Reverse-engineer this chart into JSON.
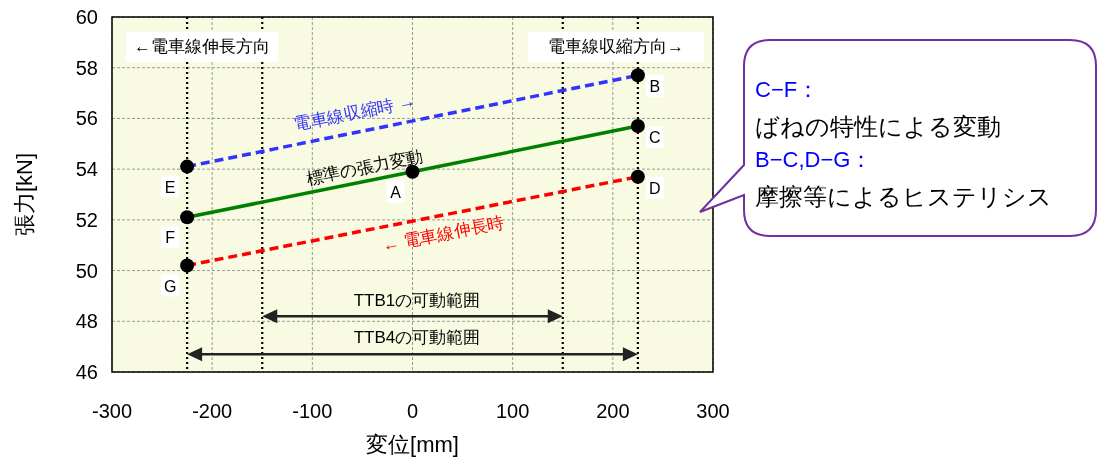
{
  "chart_data": {
    "type": "line",
    "xlabel": "変位[mm]",
    "ylabel": "張力[kN]",
    "xlim": [
      -300,
      300
    ],
    "xticks": [
      -300,
      -200,
      -100,
      0,
      100,
      200,
      300
    ],
    "ylim": [
      46,
      60
    ],
    "yticks": [
      46,
      48,
      50,
      52,
      54,
      56,
      58,
      60
    ],
    "grid": true,
    "series": [
      {
        "name": "電車線収縮時 →",
        "color": "#3333ff",
        "line_style": "dashed",
        "x": [
          -225,
          225
        ],
        "values": [
          54.1,
          57.7
        ]
      },
      {
        "name": "標準の張力変動",
        "color": "#008000",
        "line_style": "solid",
        "x": [
          -225,
          0,
          225
        ],
        "values": [
          52.1,
          53.9,
          55.7
        ]
      },
      {
        "name": "← 電車線伸長時",
        "color": "#ff0000",
        "line_style": "dashed",
        "x": [
          -225,
          225
        ],
        "values": [
          50.2,
          53.7
        ]
      },
      {
        "type": "scatter",
        "color": "#000000",
        "marker": "circle",
        "x": [
          0,
          225,
          225,
          225,
          -225,
          -225,
          -225
        ],
        "values": [
          53.9,
          57.7,
          55.7,
          53.7,
          54.1,
          52.1,
          50.2
        ]
      }
    ],
    "ref_lines": [
      {
        "axis": "x",
        "value": -225,
        "line_style": "dotted",
        "color": "#000000"
      },
      {
        "axis": "x",
        "value": -150,
        "line_style": "dotted",
        "color": "#000000"
      },
      {
        "axis": "x",
        "value": 150,
        "line_style": "dotted",
        "color": "#000000"
      },
      {
        "axis": "x",
        "value": 225,
        "line_style": "dotted",
        "color": "#000000"
      }
    ],
    "annotations": [
      {
        "text": "A",
        "x": 0,
        "y": 53.9
      },
      {
        "text": "B",
        "x": 225,
        "y": 57.7
      },
      {
        "text": "C",
        "x": 225,
        "y": 55.7
      },
      {
        "text": "D",
        "x": 225,
        "y": 53.7
      },
      {
        "text": "E",
        "x": -225,
        "y": 54.1
      },
      {
        "text": "F",
        "x": -225,
        "y": 52.1
      },
      {
        "text": "G",
        "x": -225,
        "y": 50.2
      },
      "←電車線伸長方向",
      "電車線収縮方向→",
      "TTB1の可動範囲",
      "TTB4の可動範囲",
      "C−F：",
      "ばねの特性による変動",
      "B−C,D−G：",
      "摩擦等によるヒステリシス"
    ]
  }
}
